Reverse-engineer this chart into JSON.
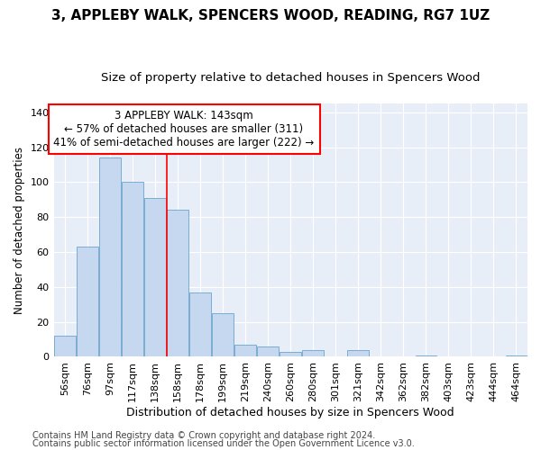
{
  "title1": "3, APPLEBY WALK, SPENCERS WOOD, READING, RG7 1UZ",
  "title2": "Size of property relative to detached houses in Spencers Wood",
  "xlabel": "Distribution of detached houses by size in Spencers Wood",
  "ylabel": "Number of detached properties",
  "categories": [
    "56sqm",
    "76sqm",
    "97sqm",
    "117sqm",
    "138sqm",
    "158sqm",
    "178sqm",
    "199sqm",
    "219sqm",
    "240sqm",
    "260sqm",
    "280sqm",
    "301sqm",
    "321sqm",
    "342sqm",
    "362sqm",
    "382sqm",
    "403sqm",
    "423sqm",
    "444sqm",
    "464sqm"
  ],
  "values": [
    12,
    63,
    114,
    100,
    91,
    84,
    37,
    25,
    7,
    6,
    3,
    4,
    0,
    4,
    0,
    0,
    1,
    0,
    0,
    0,
    1
  ],
  "bar_color": "#c5d8f0",
  "bar_edge_color": "#7aadd4",
  "red_line_x": 4.5,
  "ylim": [
    0,
    145
  ],
  "yticks": [
    0,
    20,
    40,
    60,
    80,
    100,
    120,
    140
  ],
  "annotation_title": "3 APPLEBY WALK: 143sqm",
  "annotation_line1": "← 57% of detached houses are smaller (311)",
  "annotation_line2": "41% of semi-detached houses are larger (222) →",
  "footer1": "Contains HM Land Registry data © Crown copyright and database right 2024.",
  "footer2": "Contains public sector information licensed under the Open Government Licence v3.0.",
  "background_color": "#ffffff",
  "plot_bg_color": "#e8eef8",
  "grid_color": "#ffffff",
  "title1_fontsize": 11,
  "title2_fontsize": 9.5,
  "xlabel_fontsize": 9,
  "ylabel_fontsize": 8.5,
  "tick_fontsize": 8,
  "annotation_fontsize": 8.5,
  "footer_fontsize": 7
}
